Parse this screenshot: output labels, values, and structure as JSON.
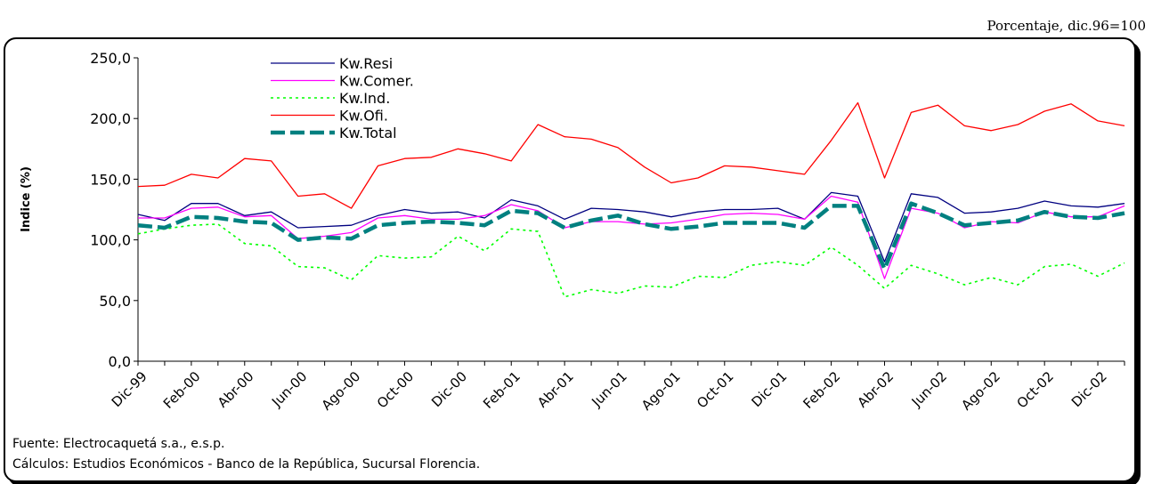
{
  "unit_note": "Porcentaje, dic.96=100",
  "footer": {
    "source": "Fuente: Electrocaquetá s.a., e.s.p.",
    "calc": "Cálculos:  Estudios Económicos - Banco de la República, Sucursal Florencia."
  },
  "chart_data": {
    "type": "line",
    "ylabel": "Indice (%)",
    "xlabel": "",
    "ylim": [
      0,
      250
    ],
    "yticks": [
      "0,0",
      "50,0",
      "100,0",
      "150,0",
      "200,0",
      "250,0"
    ],
    "ytick_values": [
      0,
      50,
      100,
      150,
      200,
      250
    ],
    "x_tick_labels": [
      "Dic-99",
      "Feb-00",
      "Abr-00",
      "Jun-00",
      "Ago-00",
      "Oct-00",
      "Dic-00",
      "Feb-01",
      "Abr-01",
      "Jun-01",
      "Ago-01",
      "Oct-01",
      "Dic-01",
      "Feb-02",
      "Abr-02",
      "Jun-02",
      "Ago-02",
      "Oct-02",
      "Dic-02"
    ],
    "x": [
      "Dic-99",
      "Ene-00",
      "Feb-00",
      "Mar-00",
      "Abr-00",
      "May-00",
      "Jun-00",
      "Jul-00",
      "Ago-00",
      "Sep-00",
      "Oct-00",
      "Nov-00",
      "Dic-00",
      "Ene-01",
      "Feb-01",
      "Mar-01",
      "Abr-01",
      "May-01",
      "Jun-01",
      "Jul-01",
      "Ago-01",
      "Sep-01",
      "Oct-01",
      "Nov-01",
      "Dic-01",
      "Ene-02",
      "Feb-02",
      "Mar-02",
      "Abr-02",
      "May-02",
      "Jun-02",
      "Jul-02",
      "Ago-02",
      "Sep-02",
      "Oct-02",
      "Nov-02",
      "Dic-02",
      "Ene-03"
    ],
    "legend_position": "top-left",
    "grid": false,
    "series": [
      {
        "name": "Kw.Resi",
        "color": "#000080",
        "style": "solid",
        "values": [
          121,
          116,
          130,
          130,
          120,
          123,
          110,
          111,
          112,
          120,
          125,
          122,
          123,
          118,
          133,
          128,
          117,
          126,
          125,
          123,
          119,
          123,
          125,
          125,
          126,
          117,
          139,
          136,
          82,
          138,
          135,
          122,
          123,
          126,
          132,
          128,
          127,
          130
        ]
      },
      {
        "name": "Kw.Comer.",
        "color": "#ff00ff",
        "style": "solid",
        "values": [
          118,
          118,
          126,
          127,
          119,
          120,
          101,
          103,
          106,
          118,
          120,
          117,
          117,
          120,
          129,
          124,
          110,
          115,
          115,
          113,
          114,
          117,
          121,
          122,
          121,
          117,
          136,
          131,
          68,
          126,
          122,
          110,
          115,
          114,
          123,
          119,
          119,
          128
        ]
      },
      {
        "name": "Kw.Ind.",
        "color": "#00ff00",
        "style": "dotted",
        "values": [
          105,
          109,
          112,
          113,
          97,
          95,
          78,
          77,
          67,
          87,
          85,
          86,
          103,
          91,
          109,
          107,
          53,
          59,
          56,
          62,
          61,
          70,
          69,
          79,
          82,
          79,
          94,
          79,
          60,
          79,
          72,
          63,
          69,
          63,
          78,
          80,
          70,
          81
        ]
      },
      {
        "name": "Kw.Ofi.",
        "color": "#ff0000",
        "style": "solid",
        "values": [
          144,
          145,
          154,
          151,
          167,
          165,
          136,
          138,
          126,
          161,
          167,
          168,
          175,
          171,
          165,
          195,
          185,
          183,
          176,
          160,
          147,
          151,
          161,
          160,
          157,
          154,
          182,
          213,
          151,
          205,
          211,
          194,
          190,
          195,
          206,
          212,
          198,
          194
        ]
      },
      {
        "name": "Kw.Total",
        "color": "#008080",
        "style": "dashed",
        "values": [
          112,
          110,
          119,
          118,
          115,
          114,
          100,
          102,
          101,
          112,
          114,
          115,
          114,
          112,
          124,
          122,
          110,
          116,
          120,
          113,
          109,
          111,
          114,
          114,
          114,
          110,
          128,
          128,
          76,
          130,
          122,
          112,
          114,
          116,
          123,
          119,
          118,
          122
        ]
      }
    ]
  }
}
